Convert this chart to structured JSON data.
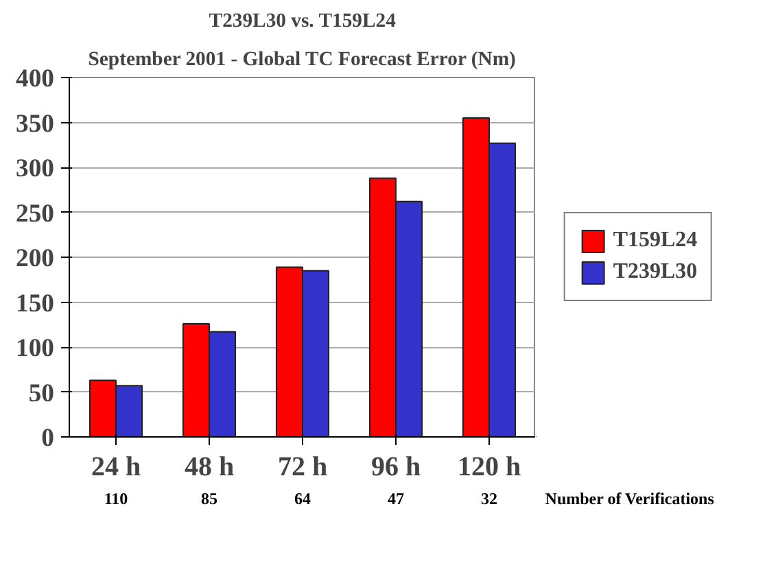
{
  "chart_data": {
    "type": "bar",
    "title": "T239L30 vs. T159L24",
    "subtitle": "September 2001 - Global TC Forecast Error (Nm)",
    "categories": [
      "24 h",
      "48 h",
      "72 h",
      "96 h",
      "120 h"
    ],
    "series": [
      {
        "name": "T159L24",
        "color": "#ff0000",
        "values": [
          63,
          126,
          189,
          288,
          355
        ]
      },
      {
        "name": "T239L30",
        "color": "#3333cc",
        "values": [
          57,
          117,
          185,
          262,
          327
        ]
      }
    ],
    "ylim": [
      0,
      400
    ],
    "yticks": [
      0,
      50,
      100,
      150,
      200,
      250,
      300,
      350,
      400
    ],
    "grid": "y",
    "legend": "right",
    "annotations": [
      "110",
      "85",
      "64",
      "47",
      "32",
      "Number of Verifications"
    ]
  }
}
